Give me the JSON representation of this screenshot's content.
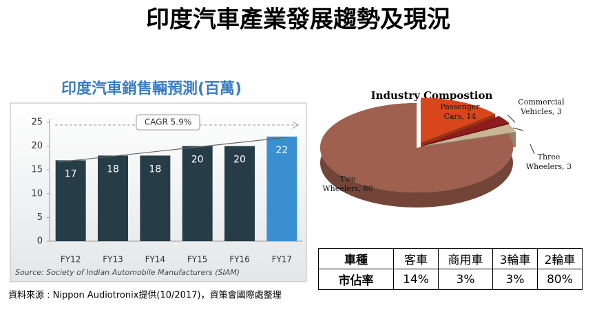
{
  "title": "印度汽車產業發展趨勢及現況",
  "footnote": "資料來源 : Nippon Audiotronix提供(10/2017)，資策會國際處整理",
  "chart_data": [
    {
      "type": "bar",
      "title": "印度汽車銷售輛預測(百萬)",
      "categories": [
        "FY12",
        "FY13",
        "FY14",
        "FY15",
        "FY16",
        "FY17"
      ],
      "values": [
        17,
        18,
        18,
        20,
        20,
        22
      ],
      "colors": [
        "#263d48",
        "#263d48",
        "#263d48",
        "#263d48",
        "#263d48",
        "#3a8fd3"
      ],
      "ylim": [
        0,
        25
      ],
      "yticks": [
        0,
        5,
        10,
        15,
        20,
        25
      ],
      "annotation": "CAGR 5.9%",
      "source": "Source: Society of Indian Automobile Manufacturers (SIAM)"
    },
    {
      "type": "pie",
      "title": "Industry Compostion",
      "values": [
        14,
        3,
        3,
        80
      ],
      "value_labels": [
        "Passenger Cars, 14",
        "Commercial Vehicles, 3",
        "Three Wheelers, 3",
        "Two Wheelers, 80"
      ],
      "colors": [
        "#d9461c",
        "#8e1c1c",
        "#c9b594",
        "#a0604f"
      ]
    }
  ],
  "table": {
    "header": [
      "車種",
      "客車",
      "商用車",
      "3輪車",
      "2輪車"
    ],
    "rows": [
      [
        "市佔率",
        "14%",
        "3%",
        "3%",
        "80%"
      ]
    ]
  }
}
